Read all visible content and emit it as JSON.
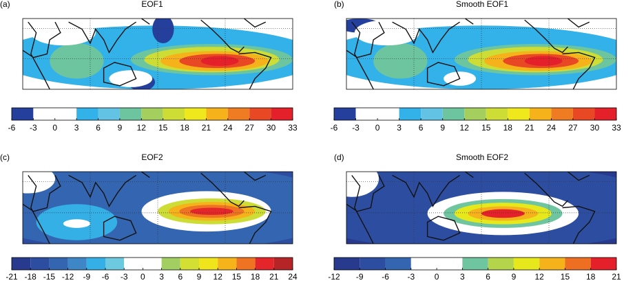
{
  "panels": [
    {
      "label": "(a)",
      "title": "EOF1",
      "colorbar": {
        "ticks": [
          -6,
          -3,
          0,
          3,
          6,
          9,
          12,
          15,
          18,
          21,
          24,
          27,
          30,
          33
        ],
        "colors": [
          "#24409c",
          "#ffffff",
          "#ffffff",
          "#33b1e9",
          "#62c3e4",
          "#6dc5a0",
          "#a4cf5f",
          "#cddd36",
          "#eee81c",
          "#f6b21a",
          "#ef7c22",
          "#e84824",
          "#e4202a"
        ]
      }
    },
    {
      "label": "(b)",
      "title": "Smooth EOF1",
      "colorbar": {
        "ticks": [
          -6,
          -3,
          0,
          3,
          6,
          9,
          12,
          15,
          18,
          21,
          24,
          27,
          30,
          33
        ],
        "colors": [
          "#24409c",
          "#ffffff",
          "#ffffff",
          "#33b1e9",
          "#62c3e4",
          "#6dc5a0",
          "#a4cf5f",
          "#cddd36",
          "#eee81c",
          "#f6b21a",
          "#ef7c22",
          "#e84824",
          "#e4202a"
        ]
      }
    },
    {
      "label": "(c)",
      "title": "EOF2",
      "colorbar": {
        "ticks": [
          -21,
          -18,
          -15,
          -12,
          -9,
          -6,
          -3,
          0,
          3,
          6,
          9,
          12,
          15,
          18,
          21,
          24
        ],
        "colors": [
          "#283a8e",
          "#2d4ea0",
          "#3465b0",
          "#3f86c6",
          "#35b0e6",
          "#6cc9e0",
          "#ffffff",
          "#ffffff",
          "#a3cf62",
          "#d3df33",
          "#f0e51c",
          "#f6b41a",
          "#ee7322",
          "#e4262a",
          "#b52427"
        ]
      }
    },
    {
      "label": "(d)",
      "title": "Smooth EOF2",
      "colorbar": {
        "ticks": [
          -12,
          -9,
          -6,
          -3,
          0,
          3,
          6,
          9,
          12,
          15,
          18,
          21
        ],
        "colors": [
          "#283a8e",
          "#2d4ea0",
          "#3465b0",
          "#ffffff",
          "#ffffff",
          "#6fc59f",
          "#b4d54b",
          "#e7e81c",
          "#f5b21a",
          "#ee6f22",
          "#e4202a"
        ]
      }
    }
  ]
}
